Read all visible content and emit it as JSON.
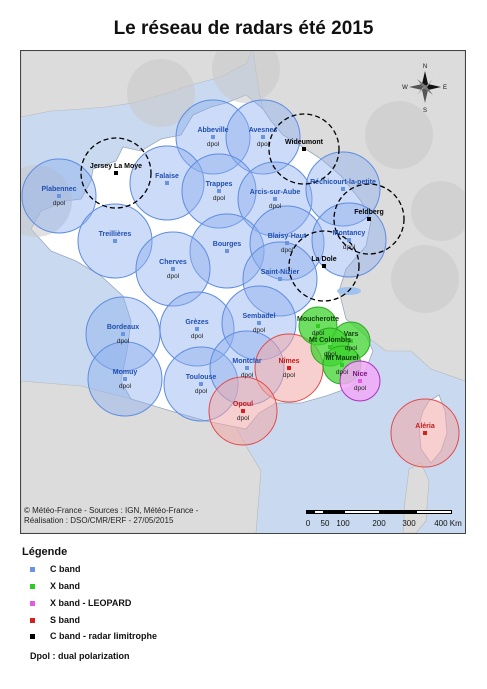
{
  "title": "Le réseau de radars été 2015",
  "colors": {
    "sea": "#c9daf0",
    "land_fr": "#ffffff",
    "land_foreign": "#dcdcdc",
    "c_band": "#3b73d6",
    "x_band": "#2ecc21",
    "x_leopard": "#e05ae8",
    "s_band": "#d62020",
    "limitrophe": "#000000"
  },
  "radars_c": [
    {
      "name": "Abbeville",
      "sub": "dpol"
    },
    {
      "name": "Avesnes",
      "sub": "dpol"
    },
    {
      "name": "Falaise",
      "sub": ""
    },
    {
      "name": "Plabennec",
      "sub": "dpol"
    },
    {
      "name": "Trappes",
      "sub": "dpol"
    },
    {
      "name": "Arcis-sur-Aube",
      "sub": "dpol"
    },
    {
      "name": "Réchicourt-la-petite",
      "sub": ""
    },
    {
      "name": "Treillières",
      "sub": ""
    },
    {
      "name": "Bourges",
      "sub": ""
    },
    {
      "name": "Blaisy-Haut",
      "sub": "dpol"
    },
    {
      "name": "Montancy",
      "sub": "dpol"
    },
    {
      "name": "Cherves",
      "sub": "dpol"
    },
    {
      "name": "Saint-Nizier",
      "sub": ""
    },
    {
      "name": "Bordeaux",
      "sub": "dpol"
    },
    {
      "name": "Grèzes",
      "sub": "dpol"
    },
    {
      "name": "Sembadel",
      "sub": "dpol"
    },
    {
      "name": "Momuy",
      "sub": "dpol"
    },
    {
      "name": "Toulouse",
      "sub": "dpol"
    },
    {
      "name": "Montclar",
      "sub": "dpol"
    }
  ],
  "radars_x": [
    {
      "name": "Moucherotte",
      "sub": "dpol"
    },
    {
      "name": "Vars",
      "sub": "dpol"
    },
    {
      "name": "Mt Colombis",
      "sub": "dpol"
    },
    {
      "name": "Mt Maurel",
      "sub": "dpol"
    }
  ],
  "radars_leopard": [
    {
      "name": "Nice",
      "sub": "dpol"
    }
  ],
  "radars_s": [
    {
      "name": "Nîmes",
      "sub": "dpol"
    },
    {
      "name": "Opoul",
      "sub": "dpol"
    },
    {
      "name": "Aléria",
      "sub": ""
    }
  ],
  "radars_limitrophe": [
    {
      "name": "Jersey La Moye"
    },
    {
      "name": "Wideumont"
    },
    {
      "name": "Feldberg"
    },
    {
      "name": "La Dole"
    }
  ],
  "compass": {
    "n": "N",
    "s": "S",
    "e": "E",
    "w": "W"
  },
  "credit": [
    "© Météo-France - Sources : IGN, Météo-France -",
    "Réalisation : DSO/CMR/ERF - 27/05/2015"
  ],
  "scale": {
    "ticks": [
      "0",
      "50",
      "100",
      "200",
      "300",
      "400 Km"
    ]
  },
  "legend": {
    "title": "Légende",
    "items": [
      {
        "label": "C band",
        "color": "#6b94e0"
      },
      {
        "label": "X band",
        "color": "#2ecc21"
      },
      {
        "label": "X band - LEOPARD",
        "color": "#e05ae8"
      },
      {
        "label": "S band",
        "color": "#d62020"
      },
      {
        "label": "C band - radar limitrophe",
        "color": "#000000"
      }
    ],
    "note": "Dpol : dual polarization"
  }
}
